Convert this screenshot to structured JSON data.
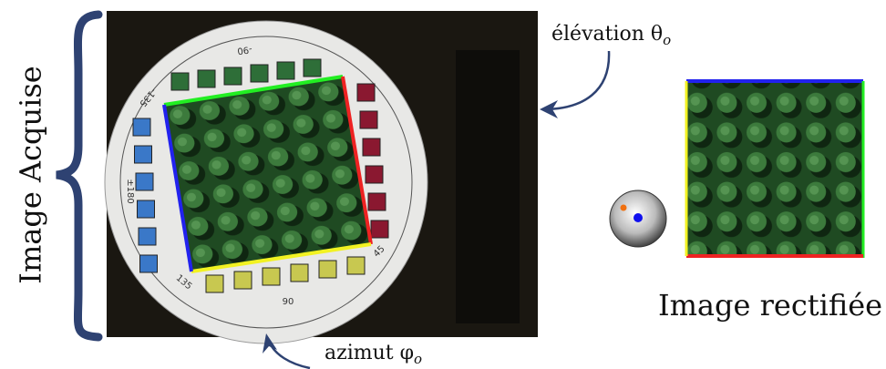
{
  "left_label": "Image Acquise",
  "elevation_label": "élévation θ",
  "elevation_sub": "o",
  "azimuth_label": "azimut φ",
  "azimuth_sub": "o",
  "right_label": "Image rectifiée",
  "dial_labels": [
    "-90",
    "-135",
    "±180",
    "135",
    "90",
    "45"
  ]
}
